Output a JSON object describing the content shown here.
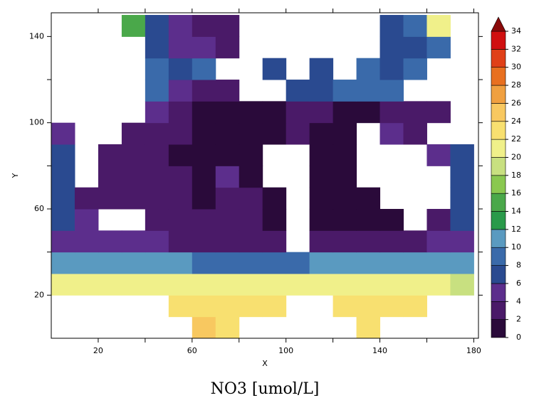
{
  "chart_data": {
    "type": "heatmap",
    "title": "NO3 [umol/L]",
    "x_label": "X",
    "y_label": "Y",
    "xlim": [
      0,
      182
    ],
    "ylim": [
      0,
      151
    ],
    "xticks": [
      20,
      60,
      100,
      140,
      180
    ],
    "xminorticks": [
      40,
      80,
      120,
      160
    ],
    "yticks": [
      20,
      60,
      100,
      140
    ],
    "yminorticks": [
      40,
      80,
      120
    ],
    "x": [
      5,
      15,
      25,
      35,
      45,
      55,
      65,
      75,
      85,
      95,
      105,
      115,
      125,
      135,
      145,
      155,
      165,
      175
    ],
    "y": [
      5,
      15,
      25,
      35,
      45,
      55,
      65,
      75,
      85,
      95,
      105,
      115,
      125,
      135,
      145
    ],
    "values": [
      [
        null,
        null,
        null,
        null,
        null,
        null,
        24,
        23,
        null,
        null,
        null,
        null,
        null,
        22,
        null,
        null,
        null,
        null
      ],
      [
        null,
        null,
        null,
        null,
        null,
        23,
        23,
        22,
        22,
        22,
        null,
        null,
        22,
        22,
        22,
        22,
        null,
        null
      ],
      [
        21,
        21,
        21,
        21,
        21,
        21,
        21,
        21,
        21,
        21,
        21,
        21,
        21,
        21,
        21,
        21,
        20,
        19
      ],
      [
        10,
        10,
        10,
        10,
        10,
        10,
        9,
        9,
        9,
        8,
        8,
        10,
        10,
        10,
        10,
        10,
        10,
        10
      ],
      [
        4,
        4,
        4,
        4,
        4,
        3,
        3,
        3,
        3,
        3,
        null,
        2,
        2,
        2,
        2,
        3,
        4,
        4
      ],
      [
        6,
        4,
        null,
        null,
        3,
        3,
        2,
        2,
        2,
        1,
        null,
        1,
        1,
        1,
        1,
        null,
        3,
        6
      ],
      [
        6,
        3,
        3,
        2,
        2,
        2,
        1,
        2,
        2,
        1,
        null,
        1,
        1,
        1,
        null,
        null,
        null,
        6
      ],
      [
        6,
        null,
        3,
        2,
        2,
        2,
        1,
        4,
        1,
        null,
        null,
        1,
        1,
        null,
        null,
        null,
        null,
        6
      ],
      [
        6,
        null,
        3,
        2,
        2,
        1,
        1,
        1,
        1,
        null,
        null,
        1,
        1,
        null,
        null,
        null,
        4,
        6
      ],
      [
        5,
        null,
        null,
        3,
        2,
        2,
        1,
        1,
        1,
        1,
        3,
        1,
        1,
        null,
        4,
        3,
        null,
        null
      ],
      [
        null,
        null,
        null,
        null,
        4,
        3,
        1,
        1,
        1,
        1,
        3,
        2,
        1,
        1,
        2,
        3,
        3,
        null
      ],
      [
        null,
        null,
        null,
        null,
        9,
        4,
        3,
        2,
        null,
        null,
        7,
        6,
        8,
        9,
        8,
        null,
        null,
        null
      ],
      [
        null,
        null,
        null,
        null,
        8,
        6,
        8,
        null,
        null,
        6,
        null,
        7,
        null,
        8,
        7,
        8,
        null,
        null
      ],
      [
        null,
        null,
        null,
        null,
        7,
        5,
        4,
        2,
        null,
        null,
        null,
        null,
        null,
        null,
        6,
        6,
        8,
        null
      ],
      [
        null,
        null,
        null,
        14,
        6,
        5,
        3,
        2,
        null,
        null,
        null,
        null,
        null,
        null,
        6,
        8,
        20,
        null
      ]
    ],
    "colorbar": {
      "levels": [
        0,
        2,
        4,
        6,
        8,
        10,
        12,
        14,
        16,
        18,
        20,
        22,
        24,
        26,
        28,
        30,
        32,
        34
      ],
      "colors": [
        "#2a0a3a",
        "#4a1a68",
        "#5c2e8c",
        "#2a4a90",
        "#3a6aaa",
        "#5a9ac0",
        "#2a9a4a",
        "#4aa84a",
        "#8ac850",
        "#c8e080",
        "#f0f08a",
        "#f8e070",
        "#f8c860",
        "#f0a040",
        "#e87020",
        "#e04018",
        "#d01010"
      ],
      "over_color": "#8a0a0a"
    }
  }
}
